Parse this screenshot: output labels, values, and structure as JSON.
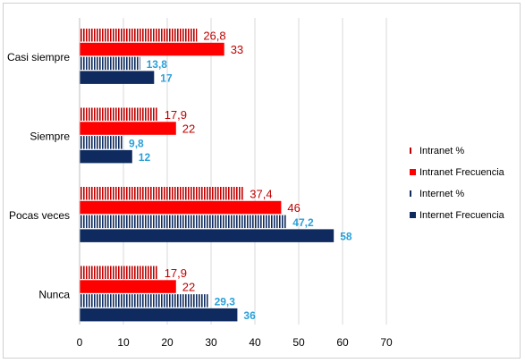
{
  "chart_data": {
    "type": "bar",
    "orientation": "horizontal",
    "categories": [
      "Casi siempre",
      "Siempre",
      "Pocas veces",
      "Nunca"
    ],
    "series": [
      {
        "name": "Intranet %",
        "values": [
          "26,8",
          "17,9",
          "37,4",
          "17,9"
        ],
        "numeric": [
          26.8,
          17.9,
          37.4,
          17.9
        ],
        "color": "#c00000",
        "pattern": "vertical-stripes"
      },
      {
        "name": "Intranet Frecuencia",
        "values": [
          "33",
          "22",
          "46",
          "22"
        ],
        "numeric": [
          33,
          22,
          46,
          22
        ],
        "color": "#ff0000",
        "pattern": "solid"
      },
      {
        "name": "Internet %",
        "values": [
          "13,8",
          "9,8",
          "47,2",
          "29,3"
        ],
        "numeric": [
          13.8,
          9.8,
          47.2,
          29.3
        ],
        "color": "#0e2a5e",
        "pattern": "vertical-stripes"
      },
      {
        "name": "Internet Frecuencia",
        "values": [
          "17",
          "12",
          "58",
          "36"
        ],
        "numeric": [
          17,
          12,
          58,
          36
        ],
        "color": "#0e2a5e",
        "pattern": "solid"
      }
    ],
    "xlim": [
      0,
      70
    ],
    "xticks": [
      "0",
      "10",
      "20",
      "30",
      "40",
      "50",
      "60",
      "70"
    ],
    "grid": "vertical",
    "legend": "right",
    "title": "",
    "xlabel": "",
    "ylabel": ""
  }
}
